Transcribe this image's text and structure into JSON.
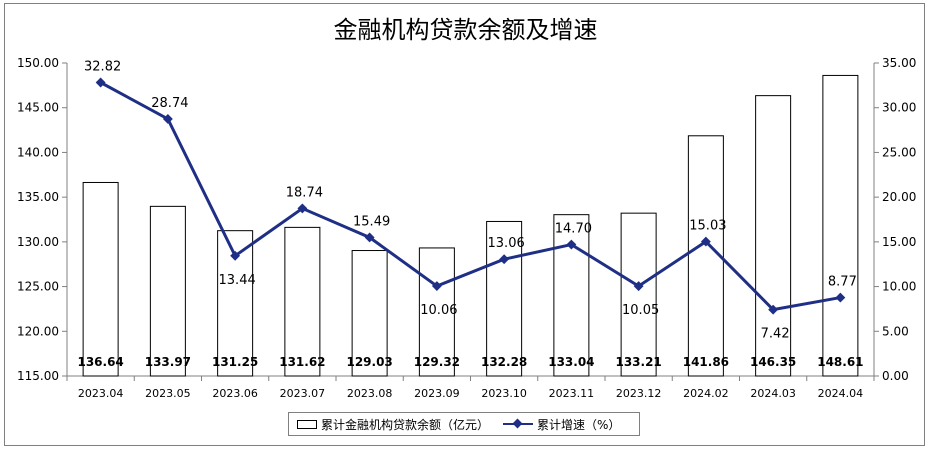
{
  "chart_data": {
    "type": "bar",
    "title": "金融机构贷款余额及增速",
    "categories": [
      "2023.04",
      "2023.05",
      "2023.06",
      "2023.07",
      "2023.08",
      "2023.09",
      "2023.10",
      "2023.11",
      "2023.12",
      "2024.02",
      "2024.03",
      "2024.04"
    ],
    "series": [
      {
        "name": "累计金融机构贷款余额（亿元）",
        "type": "bar",
        "axis": "left",
        "values": [
          136.64,
          133.97,
          131.25,
          131.62,
          129.03,
          129.32,
          132.28,
          133.04,
          133.21,
          141.86,
          146.35,
          148.61
        ],
        "labels": [
          "136.64",
          "133.97",
          "131.25",
          "131.62",
          "129.03",
          "129.32",
          "132.28",
          "133.04",
          "133.21",
          "141.86",
          "146.35",
          "148.61"
        ]
      },
      {
        "name": "累计增速（%）",
        "type": "line",
        "axis": "right",
        "values": [
          32.82,
          28.74,
          13.44,
          18.74,
          15.49,
          10.06,
          13.06,
          14.7,
          10.05,
          15.03,
          7.42,
          8.77
        ],
        "labels": [
          "32.82",
          "28.74",
          "13.44",
          "18.74",
          "15.49",
          "10.06",
          "13.06",
          "14.70",
          "10.05",
          "15.03",
          "7.42",
          "8.77"
        ]
      }
    ],
    "y_left": {
      "ylim": [
        115,
        150
      ],
      "ticks": [
        "115.00",
        "120.00",
        "125.00",
        "130.00",
        "135.00",
        "140.00",
        "145.00",
        "150.00"
      ]
    },
    "y_right": {
      "ylim": [
        0,
        35
      ],
      "ticks": [
        "0.00",
        "5.00",
        "10.00",
        "15.00",
        "20.00",
        "25.00",
        "30.00",
        "35.00"
      ]
    },
    "grid": false,
    "legend_position": "bottom",
    "colors": {
      "bar_fill": "#ffffff",
      "bar_stroke": "#000000",
      "line": "#1f2f86",
      "axis": "#808080"
    }
  }
}
